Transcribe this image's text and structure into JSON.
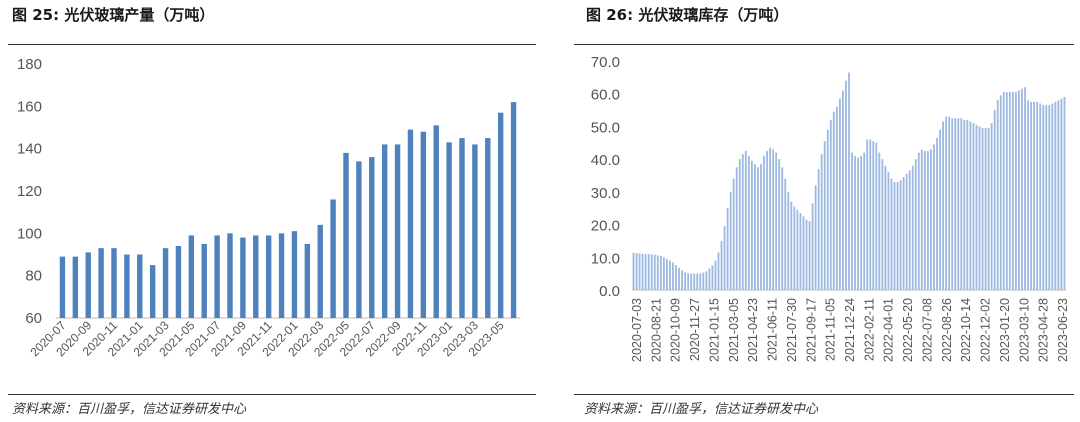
{
  "charts": [
    {
      "title": "图 25:  光伏玻璃产量（万吨）",
      "source": "资料来源：百川盈孚，信达证券研发中心",
      "chart_data": {
        "type": "bar",
        "title": "光伏玻璃产量（万吨）",
        "xlabel": "",
        "ylabel": "",
        "ylim": [
          60,
          180
        ],
        "yticks": [
          60,
          80,
          100,
          120,
          140,
          160,
          180
        ],
        "grid": false,
        "color": "#4f81bd",
        "categories": [
          "2020-07",
          "2020-08",
          "2020-09",
          "2020-10",
          "2020-11",
          "2020-12",
          "2021-01",
          "2021-02",
          "2021-03",
          "2021-04",
          "2021-05",
          "2021-06",
          "2021-07",
          "2021-08",
          "2021-09",
          "2021-10",
          "2021-11",
          "2021-12",
          "2022-01",
          "2022-02",
          "2022-03",
          "2022-04",
          "2022-05",
          "2022-06",
          "2022-07",
          "2022-08",
          "2022-09",
          "2022-10",
          "2022-11",
          "2022-12",
          "2023-01",
          "2023-02",
          "2023-03",
          "2023-04",
          "2023-05",
          "2023-06"
        ],
        "tick_labels": [
          "2020-07",
          "2020-09",
          "2020-11",
          "2021-01",
          "2021-03",
          "2021-05",
          "2021-07",
          "2021-09",
          "2021-11",
          "2022-01",
          "2022-03",
          "2022-05",
          "2022-07",
          "2022-09",
          "2022-11",
          "2023-01",
          "2023-03",
          "2023-05"
        ],
        "values": [
          89,
          89,
          91,
          93,
          93,
          90,
          90,
          85,
          93,
          94,
          99,
          95,
          99,
          100,
          98,
          99,
          99,
          100,
          101,
          95,
          104,
          116,
          138,
          134,
          136,
          142,
          142,
          149,
          148,
          151,
          143,
          145,
          142,
          145,
          157,
          162
        ]
      }
    },
    {
      "title": "图 26:  光伏玻璃库存（万吨）",
      "source": "资料来源：百川盈孚，信达证券研发中心",
      "chart_data": {
        "type": "bar",
        "title": "光伏玻璃库存（万吨）",
        "xlabel": "",
        "ylabel": "",
        "ylim": [
          0,
          70
        ],
        "yticks": [
          "0.0",
          "10.0",
          "20.0",
          "30.0",
          "40.0",
          "50.0",
          "60.0",
          "70.0"
        ],
        "grid": false,
        "color": "#9db9e0",
        "tick_labels": [
          "2020-07-03",
          "2020-08-21",
          "2020-10-09",
          "2020-11-27",
          "2021-01-15",
          "2021-03-05",
          "2021-04-23",
          "2021-06-11",
          "2021-07-30",
          "2021-09-17",
          "2021-11-05",
          "2021-12-24",
          "2022-02-11",
          "2022-04-01",
          "2022-05-20",
          "2022-07-08",
          "2022-08-26",
          "2022-10-14",
          "2022-12-02",
          "2023-01-20",
          "2023-03-10",
          "2023-04-28",
          "2023-06-23"
        ],
        "values": [
          11.4,
          11.3,
          11.2,
          11.1,
          11.0,
          11.0,
          10.9,
          10.8,
          10.6,
          10.4,
          10.0,
          9.5,
          9.0,
          8.4,
          7.6,
          6.8,
          6.0,
          5.4,
          5.1,
          5.0,
          5.0,
          5.0,
          5.1,
          5.3,
          5.7,
          6.5,
          7.5,
          9.0,
          11.5,
          15.0,
          19.5,
          25.0,
          30.0,
          34.0,
          37.5,
          40.0,
          41.5,
          42.5,
          41.0,
          39.5,
          38.5,
          37.5,
          38.5,
          41.0,
          42.5,
          43.5,
          43.0,
          42.0,
          40.0,
          37.5,
          34.0,
          30.0,
          27.0,
          25.5,
          24.5,
          23.5,
          22.5,
          21.5,
          21.0,
          26.5,
          32.0,
          37.0,
          41.5,
          45.5,
          49.0,
          52.0,
          54.5,
          56.0,
          58.5,
          61.0,
          64.0,
          66.5,
          42.0,
          41.0,
          40.5,
          41.0,
          42.0,
          46.0,
          46.0,
          45.5,
          45.0,
          42.0,
          40.0,
          38.0,
          36.0,
          34.0,
          33.0,
          33.0,
          33.5,
          34.5,
          35.5,
          36.5,
          38.0,
          40.0,
          42.0,
          43.0,
          42.5,
          42.5,
          43.0,
          44.5,
          46.5,
          49.0,
          51.5,
          53.0,
          53.0,
          52.5,
          52.5,
          52.5,
          52.5,
          52.0,
          52.0,
          51.5,
          51.0,
          50.5,
          50.0,
          49.5,
          49.5,
          49.5,
          51.0,
          55.0,
          58.0,
          59.5,
          60.5,
          60.5,
          60.5,
          60.5,
          60.5,
          61.0,
          61.5,
          62.0,
          58.0,
          57.5,
          57.5,
          57.5,
          57.0,
          56.5,
          56.5,
          56.5,
          57.0,
          57.5,
          58.0,
          58.5,
          59.0
        ]
      }
    }
  ]
}
